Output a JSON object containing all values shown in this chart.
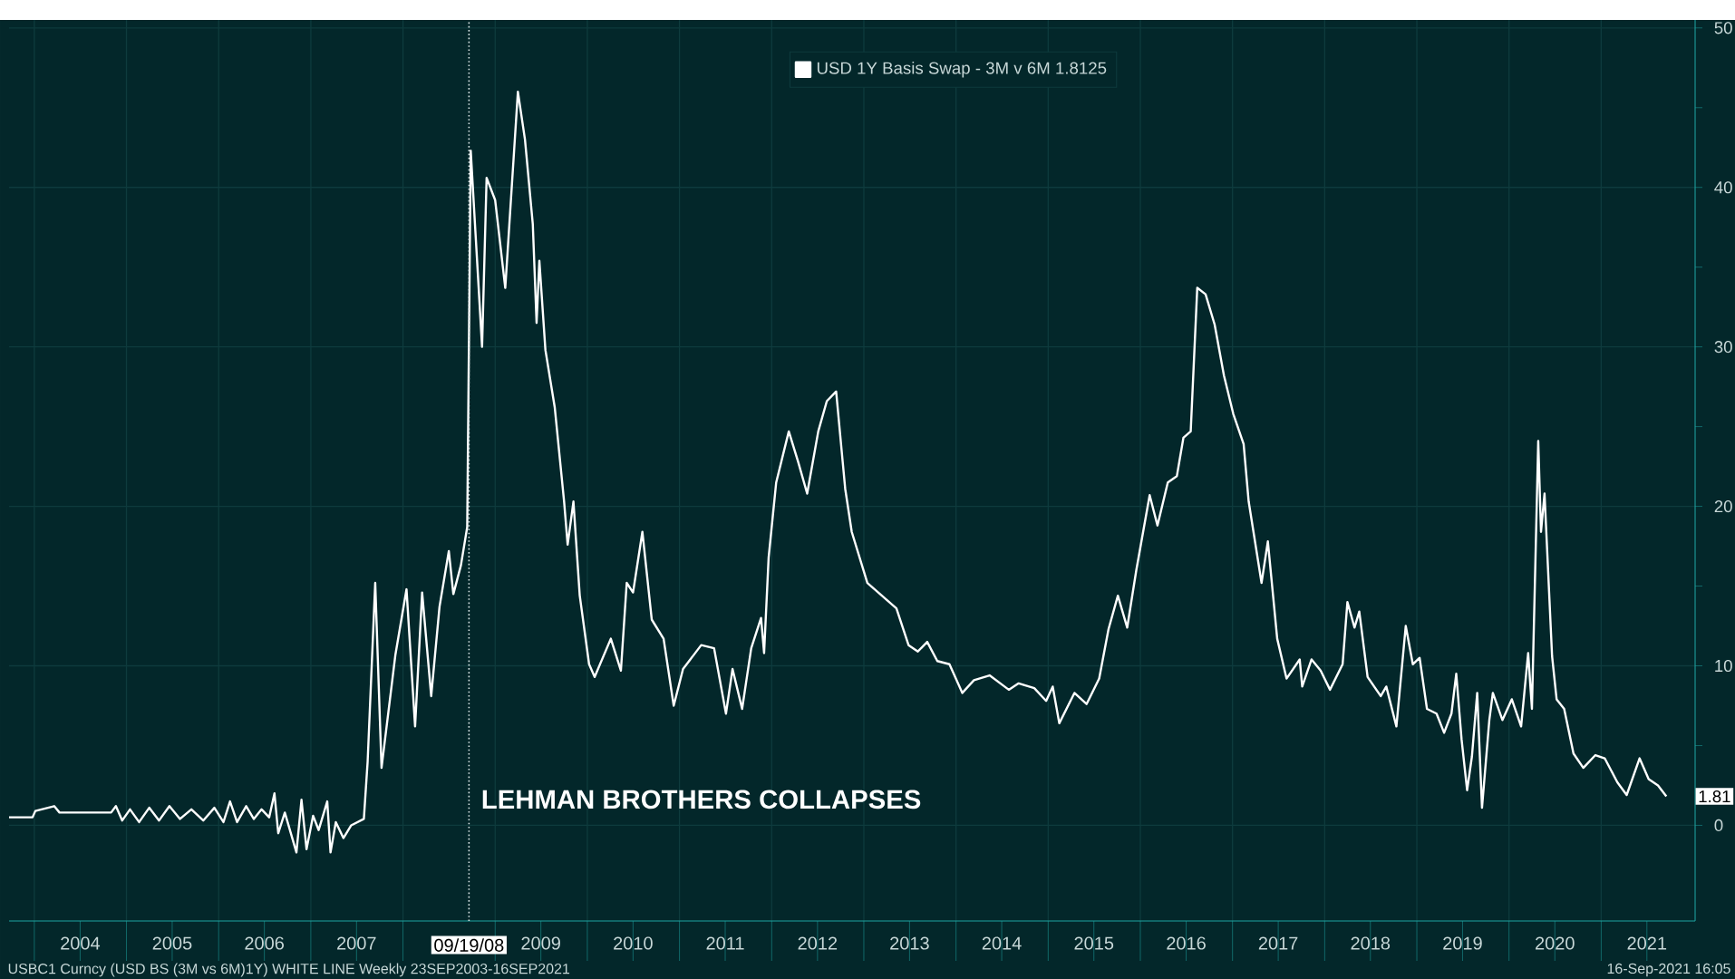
{
  "chart_data": {
    "type": "line",
    "xlim": [
      "2003-09-23",
      "2022-01-08"
    ],
    "ylim": [
      -6,
      50.5
    ],
    "xticks": [
      {
        "value": "2004-01-01",
        "label": null
      },
      {
        "value": "2005-01-01",
        "label": null
      },
      {
        "value": "2006-01-01",
        "label": null
      },
      {
        "value": "2007-01-01",
        "label": null
      },
      {
        "value": "2008-01-01",
        "label": null
      },
      {
        "value": "2009-01-01",
        "label": null
      },
      {
        "value": "2010-01-01",
        "label": null
      },
      {
        "value": "2011-01-01",
        "label": null
      },
      {
        "value": "2012-01-01",
        "label": null
      },
      {
        "value": "2013-01-01",
        "label": null
      },
      {
        "value": "2014-01-01",
        "label": null
      },
      {
        "value": "2015-01-01",
        "label": null
      },
      {
        "value": "2016-01-01",
        "label": null
      },
      {
        "value": "2017-01-01",
        "label": null
      },
      {
        "value": "2018-01-01",
        "label": null
      },
      {
        "value": "2019-01-01",
        "label": null
      },
      {
        "value": "2020-01-01",
        "label": null
      },
      {
        "value": "2021-01-01",
        "label": null
      },
      {
        "value": "2004-07-01",
        "label": "2004"
      },
      {
        "value": "2005-07-01",
        "label": "2005"
      },
      {
        "value": "2006-07-01",
        "label": "2006"
      },
      {
        "value": "2007-07-01",
        "label": "2007"
      },
      {
        "value": "2009-07-01",
        "label": "2009"
      },
      {
        "value": "2010-07-01",
        "label": "2010"
      },
      {
        "value": "2011-07-01",
        "label": "2011"
      },
      {
        "value": "2012-07-01",
        "label": "2012"
      },
      {
        "value": "2013-07-01",
        "label": "2013"
      },
      {
        "value": "2014-07-01",
        "label": "2014"
      },
      {
        "value": "2015-07-01",
        "label": "2015"
      },
      {
        "value": "2016-07-01",
        "label": "2016"
      },
      {
        "value": "2017-07-01",
        "label": "2017"
      },
      {
        "value": "2018-07-01",
        "label": "2018"
      },
      {
        "value": "2019-07-01",
        "label": "2019"
      },
      {
        "value": "2020-07-01",
        "label": "2020"
      },
      {
        "value": "2021-07-01",
        "label": "2021"
      }
    ],
    "yticks": [
      0,
      10,
      20,
      30,
      40,
      50,
      {
        "value": 5,
        "label": null
      },
      {
        "value": 15,
        "label": null
      },
      {
        "value": 25,
        "label": null
      },
      {
        "value": 35,
        "label": null
      },
      {
        "value": 45,
        "label": null
      }
    ],
    "grid": true,
    "legend": "top",
    "ref_lines": [
      {
        "axis": "x",
        "value": "2008-09-19",
        "label": "09/19/08",
        "color": "#d8e4e4",
        "line_style": "dotted"
      }
    ],
    "annotations": [
      {
        "text": "LEHMAN BROTHERS COLLAPSES",
        "x": "2008-09-19",
        "y": 0.5
      },
      {
        "text": "1.81",
        "x": "2021-09-16",
        "y": 1.81
      },
      "USBC1 Curncy (USD BS (3M vs 6M)1Y) WHITE LINE  Weekly 23SEP2003-16SEP2021",
      "16-Sep-2021 16:05"
    ],
    "series": [
      {
        "name": "USD 1Y Basis Swap - 3M v 6M 1.8125",
        "color": "#ffffff",
        "x": [
          "2003-09-23",
          "2003-12-25",
          "2004-01-05",
          "2004-03-20",
          "2004-04-10",
          "2004-11-01",
          "2004-11-20",
          "2004-12-15",
          "2005-01-15",
          "2005-02-20",
          "2005-04-01",
          "2005-05-10",
          "2005-06-20",
          "2005-08-01",
          "2005-09-15",
          "2005-11-01",
          "2005-12-15",
          "2006-01-20",
          "2006-02-15",
          "2006-03-15",
          "2006-04-20",
          "2006-05-20",
          "2006-06-20",
          "2006-07-20",
          "2006-08-10",
          "2006-08-25",
          "2006-09-20",
          "2006-11-05",
          "2006-11-25",
          "2006-12-15",
          "2007-01-10",
          "2007-02-01",
          "2007-03-07",
          "2007-03-20",
          "2007-04-10",
          "2007-05-10",
          "2007-06-10",
          "2007-07-30",
          "2007-08-14",
          "2007-09-13",
          "2007-10-08",
          "2007-12-02",
          "2008-01-15",
          "2008-02-18",
          "2008-03-17",
          "2008-04-22",
          "2008-05-25",
          "2008-07-01",
          "2008-07-19",
          "2008-08-18",
          "2008-09-12",
          "2008-09-26",
          "2008-11-10",
          "2008-11-28",
          "2009-01-01",
          "2009-02-10",
          "2009-03-17",
          "2009-04-01",
          "2009-04-29",
          "2009-05-30",
          "2009-06-14",
          "2009-06-25",
          "2009-07-19",
          "2009-08-25",
          "2009-10-01",
          "2009-10-15",
          "2009-11-07",
          "2009-12-02",
          "2010-01-08",
          "2010-01-30",
          "2010-04-04",
          "2010-05-14",
          "2010-06-06",
          "2010-07-01",
          "2010-08-07",
          "2010-09-13",
          "2010-10-30",
          "2010-12-09",
          "2011-01-15",
          "2011-03-28",
          "2011-05-18",
          "2011-07-04",
          "2011-07-30",
          "2011-09-06",
          "2011-10-12",
          "2011-11-20",
          "2011-12-02",
          "2011-12-20",
          "2012-01-19",
          "2012-03-09",
          "2012-04-15",
          "2012-05-21",
          "2012-07-04",
          "2012-08-07",
          "2012-09-13",
          "2012-10-19",
          "2012-11-14",
          "2013-01-15",
          "2013-05-10",
          "2013-06-27",
          "2013-08-03",
          "2013-09-09",
          "2013-10-19",
          "2013-12-06",
          "2014-01-26",
          "2014-03-13",
          "2014-05-14",
          "2014-07-29",
          "2014-09-06",
          "2014-11-07",
          "2014-12-24",
          "2015-01-19",
          "2015-02-14",
          "2015-04-15",
          "2015-06-02",
          "2015-07-22",
          "2015-08-28",
          "2015-10-04",
          "2015-11-10",
          "2015-12-16",
          "2016-02-07",
          "2016-03-09",
          "2016-04-19",
          "2016-05-25",
          "2016-06-20",
          "2016-07-19",
          "2016-08-14",
          "2016-09-16",
          "2016-10-22",
          "2016-11-28",
          "2017-01-04",
          "2017-02-14",
          "2017-03-06",
          "2017-04-26",
          "2017-05-21",
          "2017-06-27",
          "2017-08-03",
          "2017-09-24",
          "2017-10-04",
          "2017-11-10",
          "2017-12-16",
          "2018-01-22",
          "2018-03-13",
          "2018-04-01",
          "2018-04-29",
          "2018-05-18",
          "2018-06-20",
          "2018-08-11",
          "2018-09-02",
          "2018-10-12",
          "2018-11-18",
          "2018-12-16",
          "2019-01-12",
          "2019-02-10",
          "2019-03-20",
          "2019-04-19",
          "2019-05-18",
          "2019-06-06",
          "2019-06-27",
          "2019-07-19",
          "2019-08-07",
          "2019-08-28",
          "2019-09-16",
          "2019-10-15",
          "2019-10-29",
          "2019-12-06",
          "2020-01-12",
          "2020-02-18",
          "2020-03-17",
          "2020-04-01",
          "2020-04-26",
          "2020-05-07",
          "2020-05-21",
          "2020-06-20",
          "2020-07-08",
          "2020-08-07",
          "2020-09-13",
          "2020-10-22",
          "2020-12-09",
          "2021-01-15",
          "2021-03-06",
          "2021-04-12",
          "2021-06-02",
          "2021-07-08",
          "2021-08-14",
          "2021-09-16"
        ],
        "values": [
          0.5,
          0.5,
          0.9,
          1.2,
          0.8,
          0.8,
          1.2,
          0.3,
          1.0,
          0.2,
          1.1,
          0.3,
          1.2,
          0.4,
          1.0,
          0.3,
          1.1,
          0.2,
          1.5,
          0.2,
          1.2,
          0.4,
          1.0,
          0.5,
          2.0,
          -0.5,
          0.8,
          -1.7,
          1.6,
          -1.5,
          0.6,
          -0.3,
          1.5,
          -1.7,
          0.2,
          -0.8,
          0.0,
          0.4,
          4.0,
          15.2,
          3.6,
          10.7,
          14.8,
          6.2,
          14.6,
          8.1,
          13.7,
          17.2,
          14.5,
          16.3,
          18.7,
          42.3,
          30.0,
          40.6,
          39.2,
          33.7,
          42.3,
          46.0,
          43.0,
          37.7,
          31.5,
          35.4,
          29.8,
          26.2,
          20.3,
          17.6,
          20.3,
          14.4,
          10.1,
          9.3,
          11.7,
          9.7,
          15.2,
          14.6,
          18.4,
          12.9,
          11.7,
          7.5,
          9.8,
          11.3,
          11.1,
          7.0,
          9.8,
          7.3,
          11.1,
          13.0,
          10.8,
          16.8,
          21.5,
          24.7,
          22.8,
          20.8,
          24.7,
          26.6,
          27.2,
          21.1,
          18.4,
          15.2,
          13.6,
          11.3,
          10.9,
          11.5,
          10.3,
          10.1,
          8.3,
          9.1,
          9.4,
          8.5,
          8.9,
          8.6,
          7.8,
          8.7,
          6.4,
          8.3,
          7.6,
          9.2,
          12.3,
          14.4,
          12.4,
          16.0,
          20.7,
          18.8,
          21.5,
          21.9,
          24.3,
          24.7,
          33.7,
          33.3,
          31.4,
          28.2,
          25.8,
          23.9,
          20.3,
          15.2,
          17.8,
          11.7,
          9.2,
          10.4,
          8.7,
          10.4,
          9.7,
          8.5,
          10.1,
          14.0,
          12.4,
          13.4,
          9.3,
          8.1,
          8.7,
          6.2,
          12.5,
          10.1,
          10.5,
          7.3,
          7.0,
          5.8,
          7.0,
          9.5,
          5.4,
          2.2,
          4.3,
          8.3,
          1.1,
          6.6,
          8.3,
          6.6,
          7.9,
          6.2,
          10.8,
          7.3,
          24.1,
          18.4,
          20.8,
          10.6,
          7.9,
          7.3,
          4.5,
          3.6,
          4.4,
          4.2,
          2.7,
          1.9,
          4.2,
          2.9,
          2.5,
          1.81
        ]
      }
    ]
  }
}
